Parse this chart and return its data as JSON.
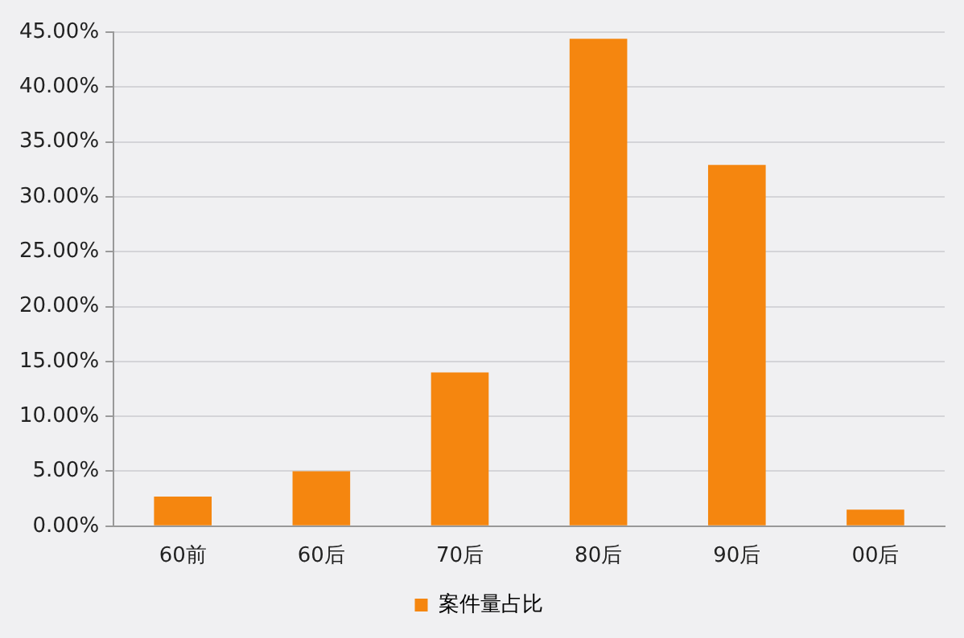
{
  "chart_data": {
    "type": "bar",
    "categories": [
      "60前",
      "60后",
      "70后",
      "80后",
      "90后",
      "00后"
    ],
    "series": [
      {
        "name": "案件量占比",
        "color": "#f5860f",
        "values": [
          2.7,
          5.0,
          14.0,
          44.4,
          32.9,
          1.5
        ]
      }
    ],
    "ylim": [
      0,
      45
    ],
    "yticks": [
      {
        "value": 0,
        "label": "0.00%"
      },
      {
        "value": 5,
        "label": "5.00%"
      },
      {
        "value": 10,
        "label": "10.00%"
      },
      {
        "value": 15,
        "label": "15.00%"
      },
      {
        "value": 20,
        "label": "20.00%"
      },
      {
        "value": 25,
        "label": "25.00%"
      },
      {
        "value": 30,
        "label": "30.00%"
      },
      {
        "value": 35,
        "label": "35.00%"
      },
      {
        "value": 40,
        "label": "40.00%"
      },
      {
        "value": 45,
        "label": "45.00%"
      }
    ],
    "grid": "y",
    "legend": "bottom"
  }
}
